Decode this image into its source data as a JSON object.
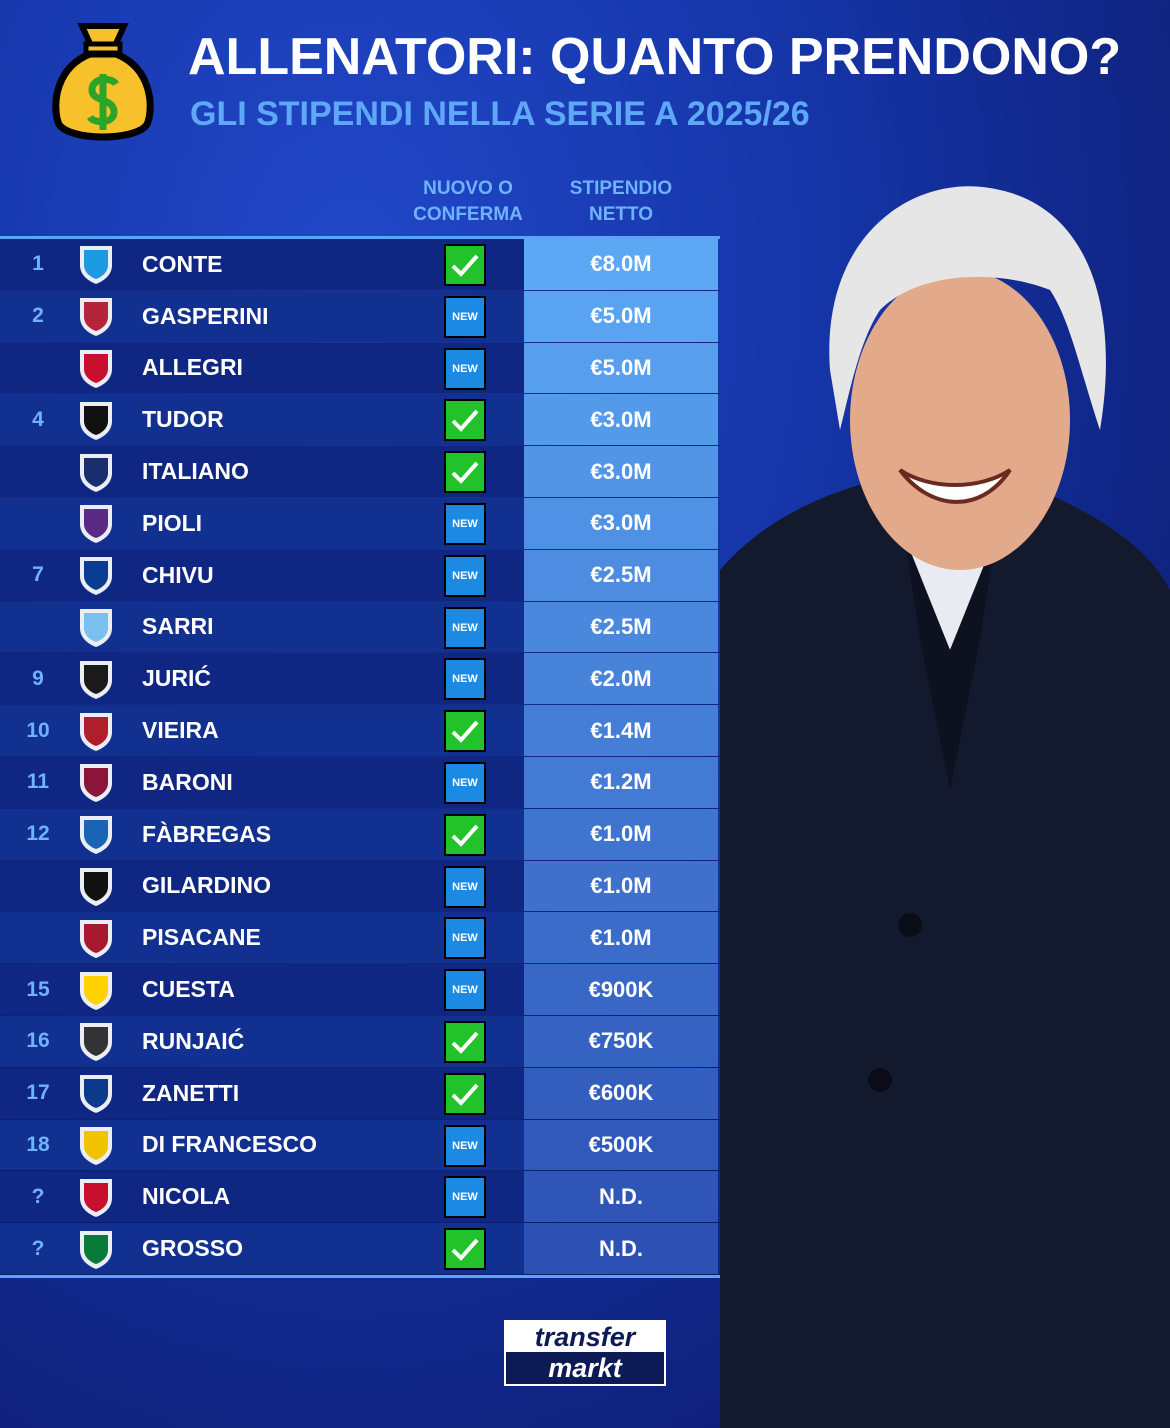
{
  "header": {
    "title": "ALLENATORI: QUANTO PRENDONO?",
    "subtitle": "GLI STIPENDI NELLA SERIE A 2025/26",
    "icon": "money-bag-icon"
  },
  "columns": {
    "status": "NUOVO O CONFERMA",
    "salary": "STIPENDIO NETTO"
  },
  "status_labels": {
    "new": "NEW"
  },
  "colors": {
    "check": "#22c32a",
    "new": "#1c8ae2",
    "accent": "#5aa6f5"
  },
  "rows": [
    {
      "rank": "1",
      "club": "napoli",
      "name": "CONTE",
      "status": "check",
      "salary": "€8.0M"
    },
    {
      "rank": "2",
      "club": "roma",
      "name": "GASPERINI",
      "status": "new",
      "salary": "€5.0M"
    },
    {
      "rank": "",
      "club": "milan",
      "name": "ALLEGRI",
      "status": "new",
      "salary": "€5.0M"
    },
    {
      "rank": "4",
      "club": "juventus",
      "name": "TUDOR",
      "status": "check",
      "salary": "€3.0M"
    },
    {
      "rank": "",
      "club": "bologna",
      "name": "ITALIANO",
      "status": "check",
      "salary": "€3.0M"
    },
    {
      "rank": "",
      "club": "fiorentina",
      "name": "PIOLI",
      "status": "new",
      "salary": "€3.0M"
    },
    {
      "rank": "7",
      "club": "inter",
      "name": "CHIVU",
      "status": "new",
      "salary": "€2.5M"
    },
    {
      "rank": "",
      "club": "lazio",
      "name": "SARRI",
      "status": "new",
      "salary": "€2.5M"
    },
    {
      "rank": "9",
      "club": "atalanta",
      "name": "JURIĆ",
      "status": "new",
      "salary": "€2.0M"
    },
    {
      "rank": "10",
      "club": "genoa",
      "name": "VIEIRA",
      "status": "check",
      "salary": "€1.4M"
    },
    {
      "rank": "11",
      "club": "torino",
      "name": "BARONI",
      "status": "new",
      "salary": "€1.2M"
    },
    {
      "rank": "12",
      "club": "como",
      "name": "FÀBREGAS",
      "status": "check",
      "salary": "€1.0M"
    },
    {
      "rank": "",
      "club": "pisa",
      "name": "GILARDINO",
      "status": "new",
      "salary": "€1.0M"
    },
    {
      "rank": "",
      "club": "cagliari",
      "name": "PISACANE",
      "status": "new",
      "salary": "€1.0M"
    },
    {
      "rank": "15",
      "club": "parma",
      "name": "CUESTA",
      "status": "new",
      "salary": "€900K"
    },
    {
      "rank": "16",
      "club": "udinese",
      "name": "RUNJAIĆ",
      "status": "check",
      "salary": "€750K"
    },
    {
      "rank": "17",
      "club": "verona",
      "name": "ZANETTI",
      "status": "check",
      "salary": "€600K"
    },
    {
      "rank": "18",
      "club": "lecce",
      "name": "DI FRANCESCO",
      "status": "new",
      "salary": "€500K"
    },
    {
      "rank": "?",
      "club": "cremonese",
      "name": "NICOLA",
      "status": "new",
      "salary": "N.D."
    },
    {
      "rank": "?",
      "club": "sassuolo",
      "name": "GROSSO",
      "status": "check",
      "salary": "N.D."
    }
  ],
  "brand": {
    "line1": "transfer",
    "line2": "markt"
  }
}
